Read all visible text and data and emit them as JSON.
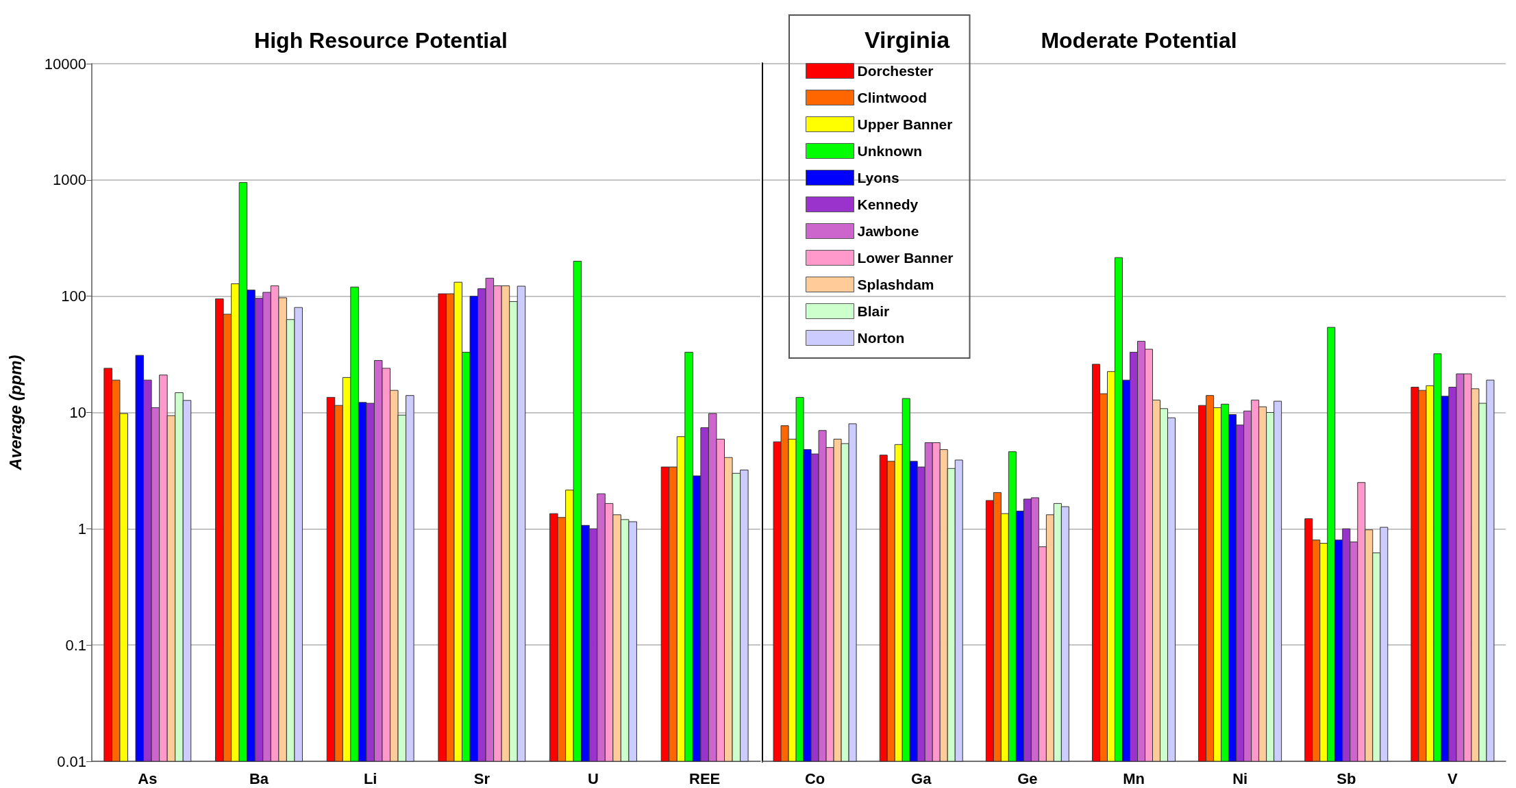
{
  "chart_data": [
    {
      "type": "bar",
      "title": "High Resource Potential",
      "ylabel": "Average (ppm)",
      "categories": [
        "As",
        "Ba",
        "Li",
        "Sr",
        "U",
        "REE"
      ],
      "log": true,
      "ylim": [
        0.01,
        10000
      ],
      "yticks": [
        0.01,
        0.1,
        1,
        10,
        100,
        1000,
        10000
      ],
      "grid": "y",
      "series": [
        {
          "color": "#ff0000",
          "values": [
            24,
            95,
            13.5,
            105,
            1.35,
            3.4
          ]
        },
        {
          "color": "#ff6600",
          "values": [
            19,
            70,
            11.5,
            105,
            1.25,
            3.4
          ]
        },
        {
          "color": "#ffff00",
          "values": [
            9.8,
            128,
            20,
            132,
            2.15,
            6.2
          ]
        },
        {
          "color": "#00ff00",
          "values": [
            null,
            950,
            120,
            33,
            200,
            33
          ]
        },
        {
          "color": "#0000ff",
          "values": [
            31,
            113,
            12.2,
            100,
            1.07,
            2.85
          ]
        },
        {
          "color": "#9933cc",
          "values": [
            19,
            96,
            12,
            116,
            1.0,
            7.4
          ]
        },
        {
          "color": "#cc66cc",
          "values": [
            11,
            108,
            28,
            143,
            2.0,
            9.8
          ]
        },
        {
          "color": "#ff99cc",
          "values": [
            21,
            123,
            24,
            123,
            1.65,
            5.9
          ]
        },
        {
          "color": "#ffcc99",
          "values": [
            9.4,
            97,
            15.5,
            123,
            1.32,
            4.1
          ]
        },
        {
          "color": "#ccffcc",
          "values": [
            14.8,
            63,
            9.5,
            90,
            1.2,
            3.0
          ]
        },
        {
          "color": "#ccccff",
          "values": [
            12.7,
            80,
            14,
            122,
            1.15,
            3.2
          ]
        }
      ]
    },
    {
      "type": "bar",
      "title": "Moderate Potential",
      "legend_title": "Virginia",
      "legend": "top left",
      "tick_labels": "x",
      "categories": [
        "Co",
        "Ga",
        "Ge",
        "Mn",
        "Ni",
        "Sb",
        "V"
      ],
      "log": true,
      "ylim": [
        0.01,
        10000
      ],
      "yticks": [
        0.01,
        0.1,
        1,
        10,
        100,
        1000,
        10000
      ],
      "grid": "y",
      "series": [
        {
          "name": "Dorchester",
          "color": "#ff0000",
          "values": [
            5.6,
            4.3,
            1.75,
            26,
            11.5,
            1.22,
            16.5
          ]
        },
        {
          "name": "Clintwood",
          "color": "#ff6600",
          "values": [
            7.7,
            3.8,
            2.05,
            14.5,
            14,
            0.8,
            15.5
          ]
        },
        {
          "name": "Upper Banner",
          "color": "#ffff00",
          "values": [
            5.9,
            5.3,
            1.35,
            22.5,
            11,
            0.75,
            17
          ]
        },
        {
          "name": "Unknown",
          "color": "#00ff00",
          "values": [
            13.5,
            13.2,
            4.6,
            215,
            11.8,
            54,
            32
          ]
        },
        {
          "name": "Lyons",
          "color": "#0000ff",
          "values": [
            4.8,
            3.8,
            1.42,
            19,
            9.6,
            0.8,
            13.8
          ]
        },
        {
          "name": "Kennedy",
          "color": "#9933cc",
          "values": [
            4.4,
            3.4,
            1.8,
            33,
            7.8,
            1.0,
            16.5
          ]
        },
        {
          "name": "Jawbone",
          "color": "#cc66cc",
          "values": [
            7.0,
            5.5,
            1.85,
            41,
            10.3,
            0.77,
            21.5
          ]
        },
        {
          "name": "Lower Banner",
          "color": "#ff99cc",
          "values": [
            5.0,
            5.5,
            0.7,
            35,
            12.8,
            2.5,
            21.5
          ]
        },
        {
          "name": "Splashdam",
          "color": "#ffcc99",
          "values": [
            5.9,
            4.8,
            1.32,
            12.8,
            11.2,
            0.98,
            16
          ]
        },
        {
          "name": "Blair",
          "color": "#ccffcc",
          "values": [
            5.4,
            3.3,
            1.65,
            10.8,
            10,
            0.62,
            12
          ]
        },
        {
          "name": "Norton",
          "color": "#ccccff",
          "values": [
            8.0,
            3.9,
            1.55,
            9.0,
            12.5,
            1.03,
            19
          ]
        }
      ]
    }
  ]
}
